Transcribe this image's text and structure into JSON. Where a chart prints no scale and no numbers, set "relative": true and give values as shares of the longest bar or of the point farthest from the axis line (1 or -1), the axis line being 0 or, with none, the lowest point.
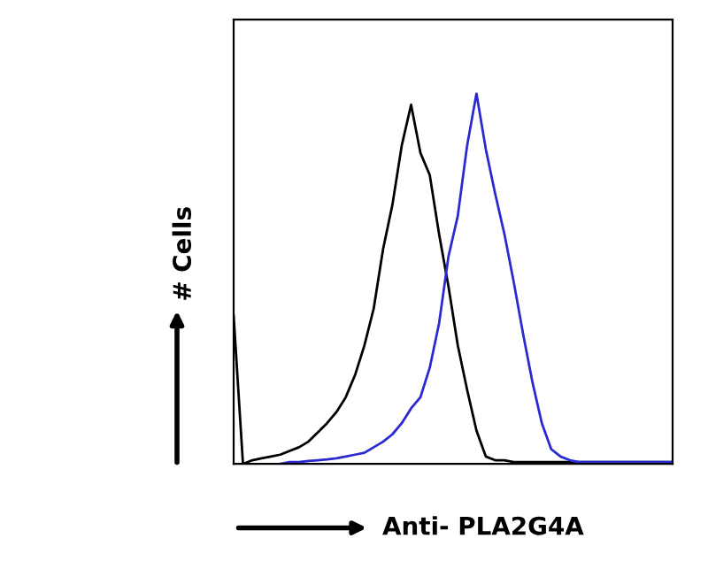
{
  "chart_data": {
    "type": "line",
    "relative": true,
    "xlabel": "Anti- PLA2G4A",
    "ylabel": "# Cells",
    "categories": [
      null,
      null,
      null,
      null,
      null,
      null,
      null,
      null,
      null,
      null,
      null,
      null,
      null,
      null,
      null,
      null,
      null,
      null,
      null,
      null,
      null,
      null,
      null,
      null,
      null,
      null,
      null,
      null,
      null,
      null,
      null,
      null,
      null,
      null,
      null,
      null,
      null,
      null,
      null,
      null,
      null,
      null,
      null,
      null,
      null,
      null,
      null,
      null
    ],
    "series": [
      {
        "color": "#000000",
        "values": [
          0.4,
          0,
          0.01,
          0.015,
          0.02,
          0.025,
          0.035,
          0.045,
          0.06,
          0.085,
          0.11,
          0.14,
          0.18,
          0.24,
          0.32,
          0.42,
          0.58,
          0.7,
          0.86,
          0.97,
          0.84,
          0.78,
          0.62,
          0.48,
          0.32,
          0.2,
          0.09,
          0.02,
          0.01,
          0.01,
          0.005,
          0.005,
          0.005,
          0.005,
          0.005,
          0.005,
          0.005,
          0.005,
          0.005,
          0.005,
          0.005,
          0.005,
          0.005,
          0.005,
          0.005,
          0.005,
          0.005,
          0.005
        ]
      },
      {
        "color": "#2a2ad0",
        "values": [
          null,
          null,
          null,
          null,
          null,
          0,
          0.005,
          0.005,
          0.008,
          0.01,
          0.012,
          0.015,
          0.02,
          0.025,
          0.03,
          0.045,
          0.06,
          0.08,
          0.11,
          0.15,
          0.18,
          0.26,
          0.38,
          0.56,
          0.67,
          0.86,
          1.0,
          0.85,
          0.73,
          0.62,
          0.49,
          0.35,
          0.22,
          0.11,
          0.04,
          0.02,
          0.01,
          0.005,
          0.005,
          0.005,
          0.005,
          0.005,
          0.005,
          0.005,
          0.005,
          0.005,
          0.005,
          0.005
        ]
      }
    ],
    "grid": false
  }
}
